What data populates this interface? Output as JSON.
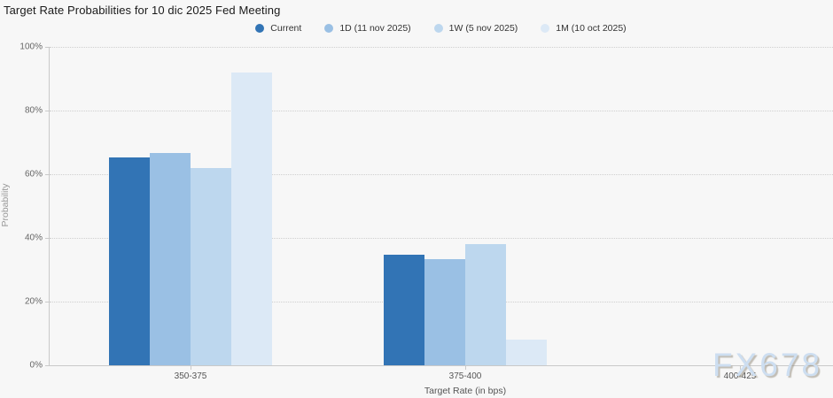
{
  "chart": {
    "title": "Target Rate Probabilities for 10 dic 2025 Fed Meeting",
    "ylabel": "Probability",
    "xlabel": "Target Rate (in bps)"
  },
  "watermark": {
    "text": "FX678"
  },
  "chart_data": {
    "type": "bar",
    "title": "Target Rate Probabilities for 10 dic 2025 Fed Meeting",
    "xlabel": "Target Rate (in bps)",
    "ylabel": "Probability",
    "ylim": [
      0,
      100
    ],
    "yticks": [
      0,
      20,
      40,
      60,
      80,
      100
    ],
    "ytick_suffix": "%",
    "grid": "horizontal-dotted",
    "legend_position": "top-center",
    "categories": [
      "350-375",
      "375-400",
      "400-425"
    ],
    "series": [
      {
        "name": "Current",
        "color": "#3274b5",
        "values": [
          65.4,
          34.6,
          0
        ]
      },
      {
        "name": "1D (11 nov 2025)",
        "color": "#9ac0e4",
        "values": [
          66.7,
          33.3,
          0
        ]
      },
      {
        "name": "1W (5 nov 2025)",
        "color": "#bdd7ee",
        "values": [
          62.0,
          38.0,
          0
        ]
      },
      {
        "name": "1M (10 oct 2025)",
        "color": "#dce9f6",
        "values": [
          91.9,
          8.1,
          0
        ]
      }
    ]
  }
}
